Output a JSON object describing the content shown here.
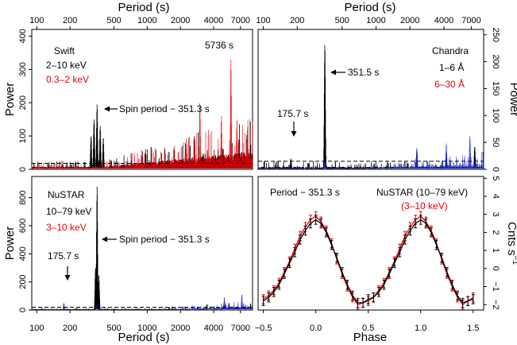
{
  "figure": {
    "top_axis_label": "Period (s)",
    "bottom_left_axis_label": "Period (s)",
    "bottom_right_axis_label": "Phase",
    "left_ylabel_top": "Power",
    "left_ylabel_bottom": "Power",
    "right_ylabel_top": "Power",
    "right_ylabel_bottom": "Cnts s",
    "right_ylabel_bottom_sup": "−1",
    "colors": {
      "black": "#000000",
      "red": "#e8000b",
      "blue": "#1f2bd6"
    }
  },
  "chart_data": [
    {
      "type": "line",
      "panel": "swift-periodogram",
      "xscale": "log",
      "xlim": [
        90,
        9000
      ],
      "ylim": [
        0,
        420
      ],
      "x_ticks": [
        "100",
        "200",
        "500",
        "1000",
        "2000",
        "4000",
        "7000"
      ],
      "y_ticks": [
        "0",
        "100",
        "200",
        "300",
        "400"
      ],
      "ylabel": "Power",
      "series": [
        {
          "name": "2–10 keV",
          "color": "#000000",
          "peaks": [
            [
              351.3,
              195
            ],
            [
              330,
              150
            ],
            [
              375,
              130
            ],
            [
              310,
              100
            ],
            [
              400,
              95
            ]
          ]
        },
        {
          "name": "0.3–2 keV",
          "color": "#e8000b",
          "peaks": [
            [
              5736,
              330
            ],
            [
              3000,
              200
            ],
            [
              4700,
              160
            ],
            [
              6500,
              150
            ]
          ]
        }
      ],
      "threshold": 18,
      "annotations": [
        {
          "text": "5736  s",
          "x": 5736,
          "y": 330
        },
        {
          "text": "Spin period −  351.3  s",
          "x": 351.3,
          "y": 195
        }
      ],
      "legend_title": "Swift",
      "legend_items": [
        "2–10 keV",
        "0.3–2 keV"
      ]
    },
    {
      "type": "line",
      "panel": "chandra-periodogram",
      "xscale": "log",
      "xlim": [
        90,
        9000
      ],
      "ylim": [
        0,
        260
      ],
      "y_ticks": [
        "0",
        "50",
        "100",
        "150",
        "200",
        "250"
      ],
      "ylabel": "Power",
      "series": [
        {
          "name": "1–6 Å",
          "color": "#000000",
          "peaks": [
            [
              351.5,
              232
            ],
            [
              175.7,
              20
            ],
            [
              2300,
              35
            ],
            [
              4200,
              30
            ],
            [
              7500,
              42
            ]
          ]
        },
        {
          "name": "6–30 Å",
          "color": "#1f2bd6",
          "peaks": [
            [
              351.5,
              20
            ],
            [
              2300,
              40
            ],
            [
              4200,
              48
            ],
            [
              6800,
              62
            ]
          ]
        }
      ],
      "threshold": 15,
      "annotations": [
        {
          "text": "351.5  s",
          "x": 351.5,
          "y": 232
        },
        {
          "text": "175.7 s",
          "x": 175.7,
          "y": 20
        }
      ],
      "legend_title": "Chandra",
      "legend_items": [
        "1–6 Å",
        "6–30 Å"
      ]
    },
    {
      "type": "line",
      "panel": "nustar-periodogram",
      "xscale": "log",
      "xlim": [
        90,
        9000
      ],
      "ylim": [
        0,
        950
      ],
      "x_ticks": [
        "100",
        "200",
        "500",
        "1000",
        "2000",
        "4000",
        "7000"
      ],
      "y_ticks": [
        "0",
        "200",
        "400",
        "600",
        "800"
      ],
      "ylabel": "Power",
      "xlabel": "Period (s)",
      "series": [
        {
          "name": "10–79 keV",
          "color": "#000000",
          "peaks": [
            [
              351.3,
              880
            ],
            [
              340,
              300
            ],
            [
              365,
              250
            ]
          ]
        },
        {
          "name": "3–10 keV",
          "color": "#1f2bd6",
          "peaks": [
            [
              175.7,
              50
            ],
            [
              351.3,
              30
            ],
            [
              5000,
              90
            ],
            [
              7200,
              110
            ]
          ]
        }
      ],
      "threshold": 20,
      "annotations": [
        {
          "text": "Spin period −  351.3  s",
          "x": 351.3,
          "y": 880
        },
        {
          "text": "175.7 s",
          "x": 175.7,
          "y": 50
        }
      ],
      "legend_title": "NuSTAR",
      "legend_items": [
        "10–79 keV",
        "3–10 keV"
      ]
    },
    {
      "type": "line",
      "panel": "nustar-pulse-profile",
      "xlim": [
        -0.55,
        1.6
      ],
      "ylim": [
        -2.3,
        5.1
      ],
      "x_ticks": [
        "−0.5",
        "0.0",
        "0.5",
        "1.0",
        "1.5"
      ],
      "x_tick_values": [
        -0.5,
        0,
        0.5,
        1,
        1.5
      ],
      "y_ticks": [
        "−2",
        "−1",
        "0",
        "1",
        "2",
        "3",
        "4",
        "5"
      ],
      "y_tick_values": [
        -2,
        -1,
        0,
        1,
        2,
        3,
        4,
        5
      ],
      "xlabel": "Phase",
      "ylabel": "Cnts s−1",
      "phase": [
        -0.5,
        -0.45,
        -0.4,
        -0.35,
        -0.3,
        -0.25,
        -0.2,
        -0.15,
        -0.1,
        -0.05,
        0,
        0.05,
        0.1,
        0.15,
        0.2,
        0.25,
        0.3,
        0.35,
        0.4,
        0.45,
        0.5,
        0.55,
        0.6,
        0.65,
        0.7,
        0.75,
        0.8,
        0.85,
        0.9,
        0.95,
        1,
        1.05,
        1.1,
        1.15,
        1.2,
        1.25,
        1.3,
        1.35,
        1.4,
        1.45,
        1.5
      ],
      "series": [
        {
          "name": "10–79 keV",
          "color": "#000000",
          "y": [
            -1.8,
            -1.6,
            -1.3,
            -0.9,
            -0.3,
            0.3,
            0.9,
            1.6,
            2.1,
            2.5,
            2.7,
            2.5,
            2.0,
            1.3,
            0.6,
            -0.2,
            -0.9,
            -1.5,
            -1.9,
            -1.9,
            -1.7,
            -1.6,
            -1.3,
            -0.9,
            -0.3,
            0.3,
            0.9,
            1.6,
            2.1,
            2.5,
            2.7,
            2.5,
            2.0,
            1.3,
            0.6,
            -0.2,
            -0.9,
            -1.5,
            -1.9,
            -1.8,
            -1.7
          ],
          "err": 0.25
        },
        {
          "name": "3–10 keV",
          "color": "#e8000b",
          "y": [
            -1.7,
            -1.5,
            -1.2,
            -0.8,
            -0.2,
            0.4,
            1.1,
            1.8,
            2.3,
            2.7,
            2.9,
            2.6,
            2.1,
            1.4,
            0.5,
            -0.3,
            -1.0,
            -1.6,
            -2.0,
            -1.9,
            -1.8,
            -1.6,
            -1.2,
            -0.8,
            -0.2,
            0.4,
            1.1,
            1.8,
            2.3,
            2.7,
            2.9,
            2.6,
            2.1,
            1.4,
            0.5,
            -0.3,
            -1.0,
            -1.6,
            -2.0,
            -1.8,
            -1.6
          ],
          "err": 0.25
        }
      ],
      "annotations": [
        {
          "text": "Period −  351.3 s"
        },
        {
          "text": "NuSTAR (10–79 keV)"
        },
        {
          "text": "(3–10 keV)"
        }
      ]
    }
  ]
}
